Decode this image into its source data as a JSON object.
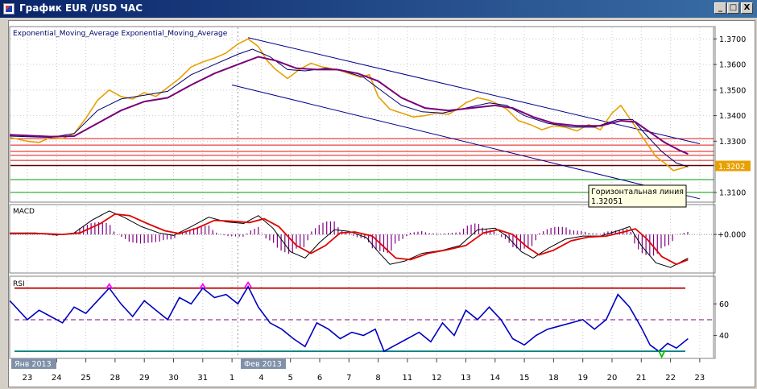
{
  "window": {
    "title": "График EUR /USD  ЧАС",
    "minimize_glyph": "_",
    "maximize_glyph": "□",
    "close_glyph": "X"
  },
  "colors": {
    "price": "#e8a000",
    "ema_fast": "#00006a",
    "ema_slow": "#7a007a",
    "channel": "#00008b",
    "resistance": "#e01010",
    "support": "#00a000",
    "macd_signal": "#e00000",
    "macd_hist": "#800080",
    "rsi": "#0000c0",
    "rsi_upper": "#c00000",
    "rsi_lower": "#008080"
  },
  "chart_data": [
    {
      "type": "line",
      "legend": "Exponential_Moving_Average Exponential_Moving_Average",
      "y_ticks": [
        "1.3700",
        "1.3600",
        "1.3500",
        "1.3400",
        "1.3300",
        "1.3100"
      ],
      "y_tick_values": [
        1.37,
        1.36,
        1.35,
        1.34,
        1.33,
        1.31
      ],
      "ylim": [
        1.3065,
        1.3745
      ],
      "current_price_label": "1.3202",
      "current_price": 1.3202,
      "x_dates": [
        {
          "label": "23",
          "t": 0
        },
        {
          "label": "24",
          "t": 1
        },
        {
          "label": "25",
          "t": 2
        },
        {
          "label": "28",
          "t": 3
        },
        {
          "label": "29",
          "t": 4
        },
        {
          "label": "30",
          "t": 5
        },
        {
          "label": "31",
          "t": 6
        },
        {
          "label": "1",
          "t": 7
        },
        {
          "label": "4",
          "t": 8
        },
        {
          "label": "5",
          "t": 9
        },
        {
          "label": "6",
          "t": 10
        },
        {
          "label": "7",
          "t": 11
        },
        {
          "label": "8",
          "t": 12
        },
        {
          "label": "11",
          "t": 13
        },
        {
          "label": "12",
          "t": 14
        },
        {
          "label": "13",
          "t": 15
        },
        {
          "label": "14",
          "t": 16
        },
        {
          "label": "15",
          "t": 17
        },
        {
          "label": "18",
          "t": 18
        },
        {
          "label": "19",
          "t": 19
        },
        {
          "label": "20",
          "t": 20
        },
        {
          "label": "21",
          "t": 21
        },
        {
          "label": "22",
          "t": 22
        },
        {
          "label": "23",
          "t": 23
        }
      ],
      "month_labels": [
        {
          "label": "Янв 2013",
          "t": 0
        },
        {
          "label": "Фев 2013",
          "t": 7.85
        }
      ],
      "price_series": [
        [
          -0.6,
          1.3315
        ],
        [
          0,
          1.33
        ],
        [
          0.4,
          1.3295
        ],
        [
          0.8,
          1.3315
        ],
        [
          1.2,
          1.331
        ],
        [
          1.6,
          1.333
        ],
        [
          2.0,
          1.339
        ],
        [
          2.4,
          1.346
        ],
        [
          2.8,
          1.35
        ],
        [
          3.2,
          1.3475
        ],
        [
          3.6,
          1.3465
        ],
        [
          4.0,
          1.349
        ],
        [
          4.4,
          1.3475
        ],
        [
          4.8,
          1.351
        ],
        [
          5.2,
          1.3545
        ],
        [
          5.6,
          1.359
        ],
        [
          6.0,
          1.361
        ],
        [
          6.4,
          1.3625
        ],
        [
          6.8,
          1.3645
        ],
        [
          7.2,
          1.368
        ],
        [
          7.55,
          1.37
        ],
        [
          7.9,
          1.367
        ],
        [
          8.2,
          1.3615
        ],
        [
          8.5,
          1.358
        ],
        [
          8.9,
          1.3545
        ],
        [
          9.3,
          1.358
        ],
        [
          9.7,
          1.3605
        ],
        [
          10.1,
          1.359
        ],
        [
          10.6,
          1.358
        ],
        [
          11.0,
          1.3565
        ],
        [
          11.4,
          1.355
        ],
        [
          11.7,
          1.356
        ],
        [
          12.0,
          1.3475
        ],
        [
          12.4,
          1.3425
        ],
        [
          12.8,
          1.341
        ],
        [
          13.2,
          1.3395
        ],
        [
          13.6,
          1.34
        ],
        [
          14.0,
          1.341
        ],
        [
          14.4,
          1.3405
        ],
        [
          14.7,
          1.3425
        ],
        [
          15.0,
          1.345
        ],
        [
          15.4,
          1.347
        ],
        [
          15.8,
          1.346
        ],
        [
          16.0,
          1.345
        ],
        [
          16.4,
          1.3425
        ],
        [
          16.8,
          1.338
        ],
        [
          17.2,
          1.3365
        ],
        [
          17.6,
          1.3345
        ],
        [
          18.0,
          1.336
        ],
        [
          18.4,
          1.3355
        ],
        [
          18.8,
          1.334
        ],
        [
          19.2,
          1.3365
        ],
        [
          19.6,
          1.3345
        ],
        [
          20.0,
          1.341
        ],
        [
          20.3,
          1.344
        ],
        [
          20.6,
          1.339
        ],
        [
          20.9,
          1.334
        ],
        [
          21.2,
          1.329
        ],
        [
          21.5,
          1.324
        ],
        [
          21.8,
          1.3215
        ],
        [
          22.1,
          1.3185
        ],
        [
          22.4,
          1.3195
        ],
        [
          22.6,
          1.3202
        ]
      ],
      "ema_fast_series": [
        [
          -0.6,
          1.332
        ],
        [
          0.8,
          1.3315
        ],
        [
          1.6,
          1.333
        ],
        [
          2.4,
          1.342
        ],
        [
          3.2,
          1.3465
        ],
        [
          4.0,
          1.348
        ],
        [
          4.8,
          1.3495
        ],
        [
          5.6,
          1.356
        ],
        [
          6.4,
          1.36
        ],
        [
          7.2,
          1.364
        ],
        [
          7.7,
          1.366
        ],
        [
          8.3,
          1.363
        ],
        [
          8.9,
          1.358
        ],
        [
          9.5,
          1.3575
        ],
        [
          10.2,
          1.3585
        ],
        [
          10.8,
          1.3575
        ],
        [
          11.5,
          1.355
        ],
        [
          12.2,
          1.349
        ],
        [
          12.8,
          1.344
        ],
        [
          13.5,
          1.3415
        ],
        [
          14.2,
          1.341
        ],
        [
          15.0,
          1.343
        ],
        [
          15.8,
          1.345
        ],
        [
          16.4,
          1.344
        ],
        [
          17.0,
          1.34
        ],
        [
          17.8,
          1.337
        ],
        [
          18.6,
          1.3355
        ],
        [
          19.4,
          1.3355
        ],
        [
          20.2,
          1.3385
        ],
        [
          20.7,
          1.3385
        ],
        [
          21.2,
          1.332
        ],
        [
          21.7,
          1.326
        ],
        [
          22.2,
          1.3215
        ],
        [
          22.6,
          1.32
        ]
      ],
      "ema_slow_series": [
        [
          -0.6,
          1.3325
        ],
        [
          0.8,
          1.3318
        ],
        [
          1.6,
          1.332
        ],
        [
          2.4,
          1.337
        ],
        [
          3.2,
          1.342
        ],
        [
          4.0,
          1.3455
        ],
        [
          4.8,
          1.347
        ],
        [
          5.6,
          1.352
        ],
        [
          6.4,
          1.3565
        ],
        [
          7.2,
          1.36
        ],
        [
          7.9,
          1.363
        ],
        [
          8.5,
          1.3615
        ],
        [
          9.2,
          1.3585
        ],
        [
          9.9,
          1.358
        ],
        [
          10.6,
          1.358
        ],
        [
          11.3,
          1.3565
        ],
        [
          12.0,
          1.3535
        ],
        [
          12.8,
          1.347
        ],
        [
          13.6,
          1.343
        ],
        [
          14.4,
          1.342
        ],
        [
          15.2,
          1.343
        ],
        [
          16.0,
          1.344
        ],
        [
          16.6,
          1.343
        ],
        [
          17.3,
          1.3395
        ],
        [
          18.0,
          1.337
        ],
        [
          18.8,
          1.336
        ],
        [
          19.6,
          1.336
        ],
        [
          20.3,
          1.338
        ],
        [
          20.8,
          1.3375
        ],
        [
          21.3,
          1.3335
        ],
        [
          21.8,
          1.3295
        ],
        [
          22.3,
          1.3265
        ],
        [
          22.6,
          1.325
        ]
      ],
      "channel_upper": [
        [
          7.55,
          1.3705
        ],
        [
          23.0,
          1.329
        ]
      ],
      "channel_lower": [
        [
          7.0,
          1.352
        ],
        [
          23.0,
          1.3075
        ]
      ],
      "resistance_levels": [
        1.331,
        1.3285,
        1.326,
        1.3245,
        1.3225
      ],
      "horizontal_line": 1.32051,
      "support_levels": [
        1.315,
        1.31
      ],
      "tooltip": {
        "label": "Горизонтальная линия",
        "value": "1.32051"
      }
    },
    {
      "type": "line",
      "legend": "MACD",
      "y_ticks": [
        "+0.000"
      ],
      "y_tick_values": [
        0
      ],
      "ylim": [
        -1.2,
        0.9
      ],
      "macd_series": [
        [
          -0.6,
          0.05
        ],
        [
          0.3,
          0.05
        ],
        [
          1.0,
          -0.02
        ],
        [
          1.6,
          0.05
        ],
        [
          2.2,
          0.45
        ],
        [
          2.8,
          0.75
        ],
        [
          3.3,
          0.55
        ],
        [
          3.9,
          0.25
        ],
        [
          4.5,
          0.05
        ],
        [
          5.0,
          -0.03
        ],
        [
          5.6,
          0.25
        ],
        [
          6.2,
          0.55
        ],
        [
          6.8,
          0.4
        ],
        [
          7.4,
          0.35
        ],
        [
          7.9,
          0.6
        ],
        [
          8.4,
          0.2
        ],
        [
          9.0,
          -0.55
        ],
        [
          9.5,
          -0.75
        ],
        [
          10.0,
          -0.25
        ],
        [
          10.5,
          0.15
        ],
        [
          11.0,
          0.1
        ],
        [
          11.6,
          -0.1
        ],
        [
          12.0,
          -0.55
        ],
        [
          12.4,
          -0.95
        ],
        [
          12.9,
          -0.85
        ],
        [
          13.5,
          -0.6
        ],
        [
          14.2,
          -0.5
        ],
        [
          14.8,
          -0.35
        ],
        [
          15.4,
          0.15
        ],
        [
          16.0,
          0.2
        ],
        [
          16.4,
          -0.05
        ],
        [
          16.9,
          -0.55
        ],
        [
          17.3,
          -0.75
        ],
        [
          17.8,
          -0.45
        ],
        [
          18.4,
          -0.15
        ],
        [
          19.0,
          -0.05
        ],
        [
          19.6,
          -0.05
        ],
        [
          20.2,
          0.12
        ],
        [
          20.6,
          0.25
        ],
        [
          21.0,
          -0.35
        ],
        [
          21.5,
          -0.9
        ],
        [
          22.0,
          -1.05
        ],
        [
          22.6,
          -0.75
        ]
      ],
      "signal_series": [
        [
          -0.6,
          0.03
        ],
        [
          0.5,
          0.03
        ],
        [
          1.2,
          0.0
        ],
        [
          1.8,
          0.05
        ],
        [
          2.5,
          0.35
        ],
        [
          3.0,
          0.65
        ],
        [
          3.5,
          0.6
        ],
        [
          4.1,
          0.35
        ],
        [
          4.7,
          0.12
        ],
        [
          5.2,
          0.03
        ],
        [
          5.8,
          0.2
        ],
        [
          6.4,
          0.45
        ],
        [
          7.0,
          0.42
        ],
        [
          7.6,
          0.38
        ],
        [
          8.1,
          0.5
        ],
        [
          8.6,
          0.25
        ],
        [
          9.2,
          -0.35
        ],
        [
          9.7,
          -0.6
        ],
        [
          10.2,
          -0.35
        ],
        [
          10.7,
          0.05
        ],
        [
          11.2,
          0.08
        ],
        [
          11.8,
          -0.05
        ],
        [
          12.2,
          -0.4
        ],
        [
          12.6,
          -0.75
        ],
        [
          13.1,
          -0.8
        ],
        [
          13.7,
          -0.6
        ],
        [
          14.4,
          -0.48
        ],
        [
          15.0,
          -0.35
        ],
        [
          15.6,
          0.05
        ],
        [
          16.1,
          0.15
        ],
        [
          16.6,
          0.0
        ],
        [
          17.1,
          -0.4
        ],
        [
          17.5,
          -0.65
        ],
        [
          18.0,
          -0.5
        ],
        [
          18.6,
          -0.2
        ],
        [
          19.2,
          -0.08
        ],
        [
          19.8,
          -0.05
        ],
        [
          20.4,
          0.08
        ],
        [
          20.8,
          0.18
        ],
        [
          21.2,
          -0.15
        ],
        [
          21.7,
          -0.7
        ],
        [
          22.2,
          -0.95
        ],
        [
          22.6,
          -0.8
        ]
      ]
    },
    {
      "type": "line",
      "legend": "RSI",
      "y_ticks": [
        "60",
        "40"
      ],
      "y_tick_values": [
        60,
        40
      ],
      "ylim": [
        26,
        77
      ],
      "upper_level": 70,
      "mid_level": 50,
      "lower_level": 30,
      "rsi_series": [
        [
          -0.6,
          62
        ],
        [
          0,
          50
        ],
        [
          0.4,
          56
        ],
        [
          0.8,
          52
        ],
        [
          1.2,
          48
        ],
        [
          1.6,
          58
        ],
        [
          2.0,
          54
        ],
        [
          2.4,
          62
        ],
        [
          2.8,
          70
        ],
        [
          3.2,
          60
        ],
        [
          3.6,
          52
        ],
        [
          4.0,
          62
        ],
        [
          4.4,
          56
        ],
        [
          4.8,
          50
        ],
        [
          5.2,
          64
        ],
        [
          5.6,
          60
        ],
        [
          6.0,
          70
        ],
        [
          6.4,
          64
        ],
        [
          6.8,
          66
        ],
        [
          7.2,
          60
        ],
        [
          7.55,
          71
        ],
        [
          7.9,
          58
        ],
        [
          8.3,
          48
        ],
        [
          8.7,
          44
        ],
        [
          9.1,
          38
        ],
        [
          9.5,
          33
        ],
        [
          9.9,
          48
        ],
        [
          10.3,
          44
        ],
        [
          10.7,
          38
        ],
        [
          11.1,
          42
        ],
        [
          11.5,
          40
        ],
        [
          11.9,
          44
        ],
        [
          12.2,
          30
        ],
        [
          12.6,
          34
        ],
        [
          13.0,
          38
        ],
        [
          13.4,
          42
        ],
        [
          13.8,
          36
        ],
        [
          14.2,
          48
        ],
        [
          14.6,
          40
        ],
        [
          15.0,
          56
        ],
        [
          15.4,
          50
        ],
        [
          15.8,
          58
        ],
        [
          16.2,
          50
        ],
        [
          16.6,
          38
        ],
        [
          17.0,
          34
        ],
        [
          17.4,
          40
        ],
        [
          17.8,
          44
        ],
        [
          18.2,
          46
        ],
        [
          18.6,
          48
        ],
        [
          19.0,
          50
        ],
        [
          19.4,
          44
        ],
        [
          19.8,
          50
        ],
        [
          20.2,
          66
        ],
        [
          20.6,
          58
        ],
        [
          21.0,
          45
        ],
        [
          21.3,
          34
        ],
        [
          21.6,
          30
        ],
        [
          21.9,
          35
        ],
        [
          22.2,
          32
        ],
        [
          22.6,
          38
        ]
      ],
      "overbought_marks": [
        [
          2.8,
          71
        ],
        [
          6.0,
          71
        ],
        [
          7.55,
          72
        ]
      ],
      "oversold_marks": [
        [
          21.7,
          28
        ]
      ]
    }
  ]
}
